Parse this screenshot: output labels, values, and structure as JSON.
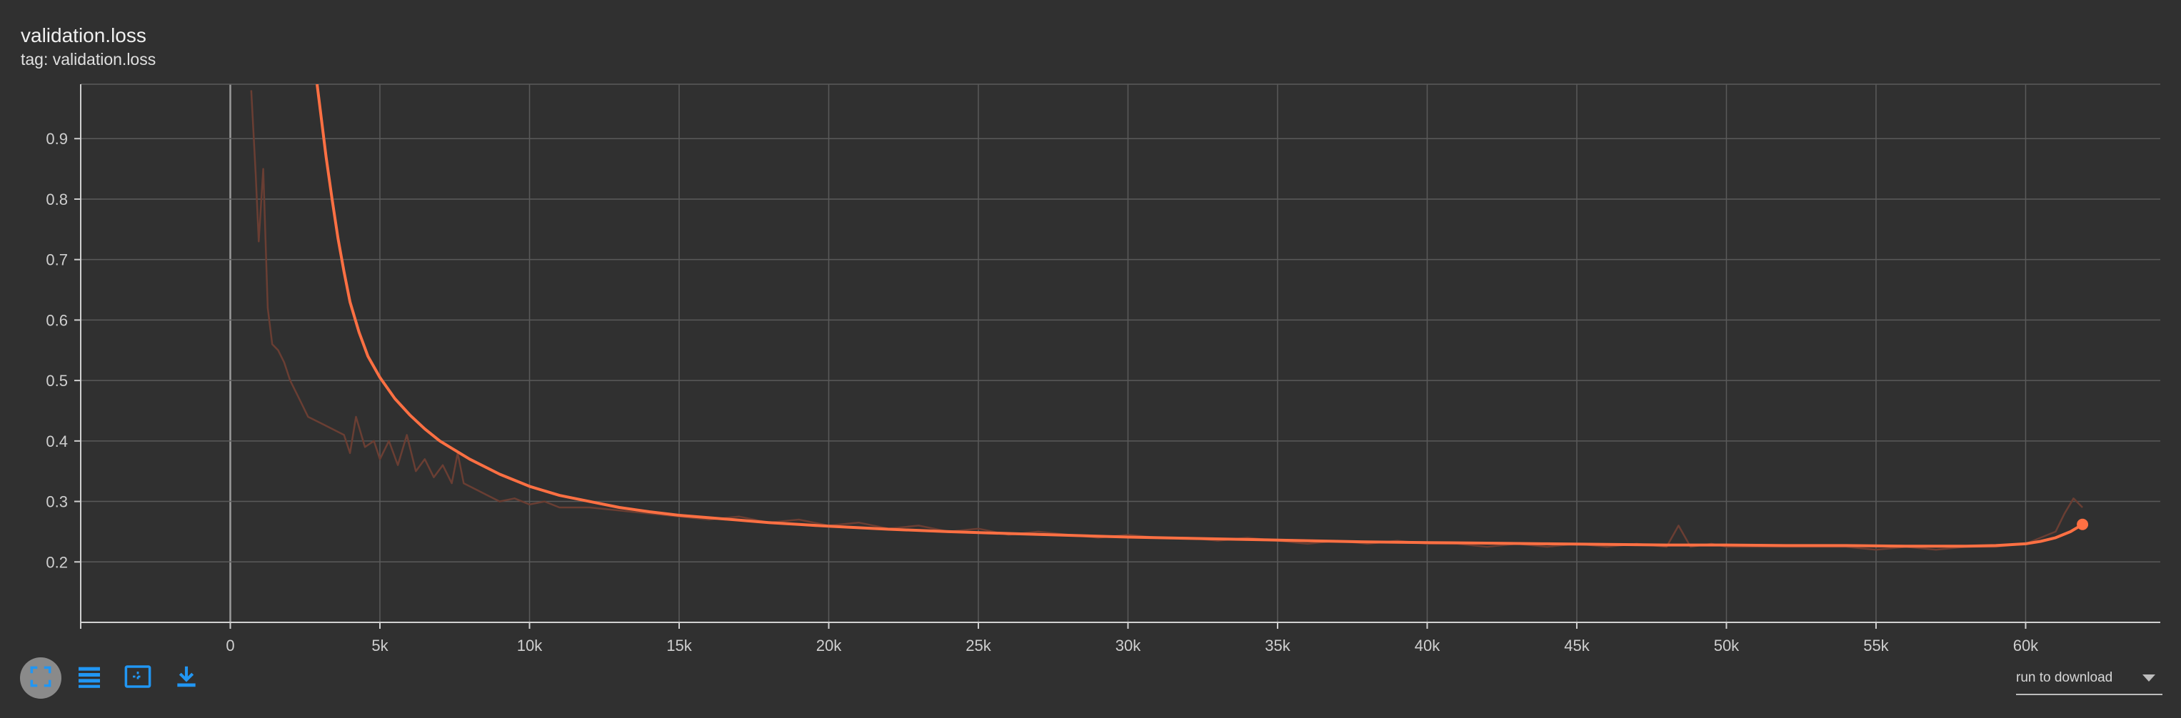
{
  "header": {
    "title": "validation.loss",
    "subtitle": "tag: validation.loss"
  },
  "colors": {
    "background": "#303030",
    "smoothed": "#ff7043",
    "raw": "#6a3e33",
    "grid": "#5a5a5a",
    "axis": "#d0d0d0",
    "icon_blue": "#2196f3",
    "active_button": "#8a8a8a"
  },
  "toolbar": {
    "buttons": [
      {
        "name": "fit-domain-button",
        "icon": "expand-icon",
        "active": true
      },
      {
        "name": "toggle-log-button",
        "icon": "list-icon",
        "active": false
      },
      {
        "name": "select-region-button",
        "icon": "region-select-icon",
        "active": false
      },
      {
        "name": "download-button",
        "icon": "download-icon",
        "active": false
      }
    ]
  },
  "run_select": {
    "label": "run to download"
  },
  "chart_data": {
    "type": "line",
    "xlim": [
      -5000,
      64500
    ],
    "ylim": [
      0.1,
      0.99
    ],
    "x_ticks": [
      0,
      5000,
      10000,
      15000,
      20000,
      25000,
      30000,
      35000,
      40000,
      45000,
      50000,
      55000,
      60000
    ],
    "x_tick_labels": [
      "0",
      "5k",
      "10k",
      "15k",
      "20k",
      "25k",
      "30k",
      "35k",
      "40k",
      "45k",
      "50k",
      "55k",
      "60k"
    ],
    "y_ticks": [
      0.2,
      0.3,
      0.4,
      0.5,
      0.6,
      0.7,
      0.8,
      0.9
    ],
    "y_tick_labels": [
      "0.2",
      "0.3",
      "0.4",
      "0.5",
      "0.6",
      "0.7",
      "0.8",
      "0.9"
    ],
    "grid": true,
    "series": [
      {
        "style": "raw",
        "x": [
          700,
          850,
          950,
          1100,
          1250,
          1400,
          1600,
          1800,
          2000,
          2300,
          2600,
          3000,
          3400,
          3800,
          4000,
          4200,
          4500,
          4800,
          5000,
          5300,
          5600,
          5900,
          6200,
          6500,
          6800,
          7100,
          7400,
          7600,
          7800,
          8200,
          8600,
          9000,
          9500,
          10000,
          10500,
          11000,
          12000,
          13000,
          14000,
          15000,
          16000,
          17000,
          18000,
          19000,
          20000,
          21000,
          22000,
          23000,
          24000,
          25000,
          26000,
          27000,
          28000,
          29000,
          30000,
          31000,
          32000,
          33000,
          34000,
          35000,
          36000,
          37000,
          38000,
          39000,
          40000,
          41000,
          42000,
          43000,
          44000,
          45000,
          46000,
          47000,
          48000,
          48400,
          48800,
          49500,
          50000,
          51000,
          52000,
          53000,
          54000,
          55000,
          56000,
          57000,
          58000,
          59000,
          60000,
          60500,
          61000,
          61300,
          61600,
          61900
        ],
        "y": [
          0.98,
          0.84,
          0.73,
          0.85,
          0.62,
          0.56,
          0.55,
          0.53,
          0.5,
          0.47,
          0.44,
          0.43,
          0.42,
          0.41,
          0.38,
          0.44,
          0.39,
          0.4,
          0.37,
          0.4,
          0.36,
          0.41,
          0.35,
          0.37,
          0.34,
          0.36,
          0.33,
          0.38,
          0.33,
          0.32,
          0.31,
          0.3,
          0.305,
          0.295,
          0.3,
          0.29,
          0.29,
          0.285,
          0.28,
          0.275,
          0.27,
          0.275,
          0.265,
          0.27,
          0.26,
          0.265,
          0.255,
          0.26,
          0.25,
          0.255,
          0.245,
          0.25,
          0.245,
          0.24,
          0.245,
          0.24,
          0.24,
          0.235,
          0.24,
          0.235,
          0.23,
          0.235,
          0.23,
          0.235,
          0.23,
          0.23,
          0.225,
          0.23,
          0.225,
          0.23,
          0.225,
          0.23,
          0.225,
          0.26,
          0.225,
          0.23,
          0.225,
          0.225,
          0.225,
          0.225,
          0.225,
          0.22,
          0.225,
          0.22,
          0.225,
          0.225,
          0.23,
          0.24,
          0.25,
          0.28,
          0.305,
          0.29
        ]
      },
      {
        "style": "smoothed",
        "x": [
          2900,
          3000,
          3200,
          3400,
          3600,
          3800,
          4000,
          4300,
          4600,
          5000,
          5500,
          6000,
          6500,
          7000,
          7500,
          8000,
          9000,
          10000,
          11000,
          12000,
          13000,
          14000,
          15000,
          16000,
          17000,
          18000,
          19000,
          20000,
          22000,
          24000,
          26000,
          28000,
          30000,
          32000,
          34000,
          36000,
          38000,
          40000,
          42000,
          44000,
          46000,
          48000,
          50000,
          52000,
          54000,
          56000,
          58000,
          59000,
          60000,
          60500,
          61000,
          61500,
          61900
        ],
        "y": [
          0.99,
          0.95,
          0.87,
          0.8,
          0.735,
          0.68,
          0.63,
          0.58,
          0.54,
          0.505,
          0.47,
          0.443,
          0.42,
          0.4,
          0.385,
          0.37,
          0.345,
          0.325,
          0.31,
          0.3,
          0.29,
          0.283,
          0.277,
          0.273,
          0.269,
          0.265,
          0.262,
          0.259,
          0.254,
          0.25,
          0.247,
          0.244,
          0.241,
          0.239,
          0.237,
          0.235,
          0.233,
          0.232,
          0.231,
          0.23,
          0.229,
          0.228,
          0.228,
          0.227,
          0.227,
          0.226,
          0.226,
          0.227,
          0.23,
          0.234,
          0.24,
          0.25,
          0.262
        ]
      }
    ]
  }
}
